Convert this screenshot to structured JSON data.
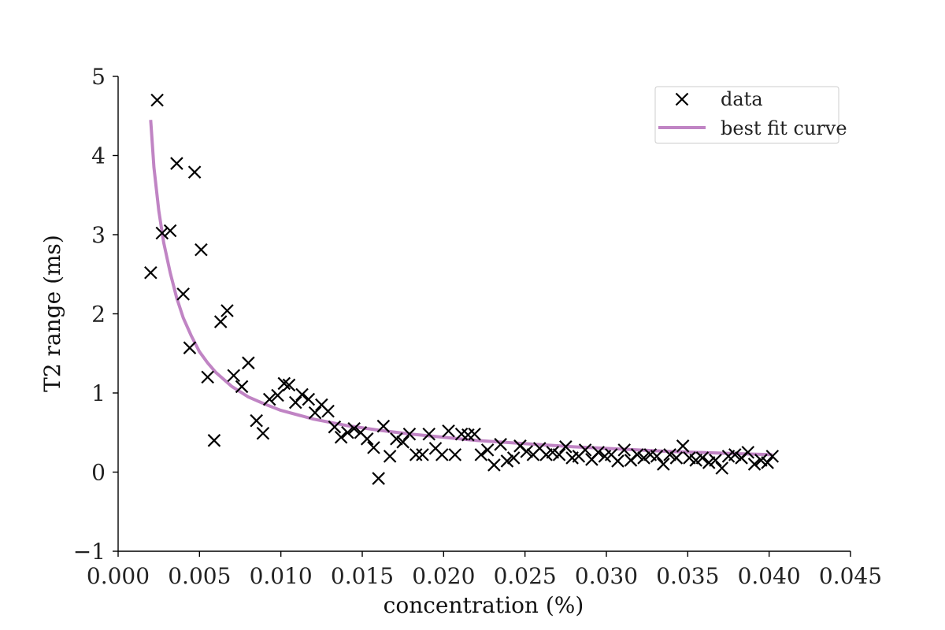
{
  "chart_data": {
    "type": "scatter",
    "title": "",
    "xlabel": "concentration (%)",
    "ylabel": "T2 range (ms)",
    "xlim": [
      0.0,
      0.045
    ],
    "ylim": [
      -1,
      5
    ],
    "xticks": [
      0.0,
      0.005,
      0.01,
      0.015,
      0.02,
      0.025,
      0.03,
      0.035,
      0.04,
      0.045
    ],
    "xtick_labels": [
      "0.000",
      "0.005",
      "0.010",
      "0.015",
      "0.020",
      "0.025",
      "0.030",
      "0.035",
      "0.040",
      "0.045"
    ],
    "yticks": [
      -1,
      0,
      1,
      2,
      3,
      4,
      5
    ],
    "ytick_labels": [
      "−1",
      "0",
      "1",
      "2",
      "3",
      "4",
      "5"
    ],
    "grid": false,
    "legend_position": "top-right",
    "series": [
      {
        "name": "data",
        "kind": "scatter",
        "marker": "x",
        "color": "#000000",
        "points": [
          [
            0.002,
            2.52
          ],
          [
            0.0024,
            4.7
          ],
          [
            0.0027,
            3.02
          ],
          [
            0.0032,
            3.05
          ],
          [
            0.0036,
            3.9
          ],
          [
            0.004,
            2.25
          ],
          [
            0.0044,
            1.57
          ],
          [
            0.0047,
            3.79
          ],
          [
            0.0051,
            2.81
          ],
          [
            0.0055,
            1.2
          ],
          [
            0.0059,
            0.4
          ],
          [
            0.0063,
            1.9
          ],
          [
            0.0067,
            2.04
          ],
          [
            0.0071,
            1.22
          ],
          [
            0.0076,
            1.08
          ],
          [
            0.008,
            1.38
          ],
          [
            0.0085,
            0.65
          ],
          [
            0.0089,
            0.49
          ],
          [
            0.0093,
            0.92
          ],
          [
            0.0098,
            0.97
          ],
          [
            0.0102,
            1.12
          ],
          [
            0.0105,
            1.1
          ],
          [
            0.0109,
            0.88
          ],
          [
            0.0113,
            0.98
          ],
          [
            0.0117,
            0.92
          ],
          [
            0.0121,
            0.75
          ],
          [
            0.0125,
            0.85
          ],
          [
            0.0129,
            0.77
          ],
          [
            0.0133,
            0.57
          ],
          [
            0.0137,
            0.44
          ],
          [
            0.0141,
            0.5
          ],
          [
            0.0145,
            0.55
          ],
          [
            0.0149,
            0.5
          ],
          [
            0.0153,
            0.42
          ],
          [
            0.0157,
            0.31
          ],
          [
            0.016,
            -0.08
          ],
          [
            0.0163,
            0.58
          ],
          [
            0.0167,
            0.2
          ],
          [
            0.0171,
            0.42
          ],
          [
            0.0175,
            0.38
          ],
          [
            0.0179,
            0.48
          ],
          [
            0.0183,
            0.22
          ],
          [
            0.0187,
            0.22
          ],
          [
            0.0191,
            0.48
          ],
          [
            0.0195,
            0.3
          ],
          [
            0.0199,
            0.22
          ],
          [
            0.0203,
            0.52
          ],
          [
            0.0207,
            0.22
          ],
          [
            0.0211,
            0.48
          ],
          [
            0.0215,
            0.47
          ],
          [
            0.0219,
            0.48
          ],
          [
            0.0223,
            0.22
          ],
          [
            0.0227,
            0.28
          ],
          [
            0.0231,
            0.09
          ],
          [
            0.0235,
            0.35
          ],
          [
            0.0239,
            0.14
          ],
          [
            0.0243,
            0.18
          ],
          [
            0.0247,
            0.33
          ],
          [
            0.0251,
            0.26
          ],
          [
            0.0255,
            0.22
          ],
          [
            0.0259,
            0.3
          ],
          [
            0.0263,
            0.22
          ],
          [
            0.0267,
            0.25
          ],
          [
            0.0271,
            0.22
          ],
          [
            0.0275,
            0.32
          ],
          [
            0.0279,
            0.18
          ],
          [
            0.0283,
            0.2
          ],
          [
            0.0287,
            0.28
          ],
          [
            0.0291,
            0.16
          ],
          [
            0.0295,
            0.25
          ],
          [
            0.0299,
            0.2
          ],
          [
            0.0303,
            0.22
          ],
          [
            0.0307,
            0.14
          ],
          [
            0.0311,
            0.28
          ],
          [
            0.0315,
            0.15
          ],
          [
            0.0319,
            0.22
          ],
          [
            0.0323,
            0.18
          ],
          [
            0.0327,
            0.22
          ],
          [
            0.0331,
            0.2
          ],
          [
            0.0335,
            0.1
          ],
          [
            0.0339,
            0.22
          ],
          [
            0.0343,
            0.18
          ],
          [
            0.0347,
            0.33
          ],
          [
            0.0351,
            0.18
          ],
          [
            0.0355,
            0.15
          ],
          [
            0.0359,
            0.18
          ],
          [
            0.0363,
            0.12
          ],
          [
            0.0367,
            0.15
          ],
          [
            0.0371,
            0.05
          ],
          [
            0.0375,
            0.2
          ],
          [
            0.0379,
            0.22
          ],
          [
            0.0383,
            0.18
          ],
          [
            0.0387,
            0.25
          ],
          [
            0.0391,
            0.1
          ],
          [
            0.0395,
            0.15
          ],
          [
            0.0399,
            0.12
          ],
          [
            0.0402,
            0.2
          ]
        ]
      },
      {
        "name": "best fit curve",
        "kind": "line",
        "color": "#c084c4",
        "points": [
          [
            0.002,
            4.45
          ],
          [
            0.0022,
            3.85
          ],
          [
            0.0025,
            3.3
          ],
          [
            0.0028,
            2.9
          ],
          [
            0.0032,
            2.52
          ],
          [
            0.0036,
            2.2
          ],
          [
            0.004,
            1.95
          ],
          [
            0.0045,
            1.72
          ],
          [
            0.005,
            1.52
          ],
          [
            0.0055,
            1.38
          ],
          [
            0.006,
            1.26
          ],
          [
            0.007,
            1.08
          ],
          [
            0.008,
            0.95
          ],
          [
            0.009,
            0.86
          ],
          [
            0.01,
            0.78
          ],
          [
            0.012,
            0.67
          ],
          [
            0.014,
            0.59
          ],
          [
            0.016,
            0.53
          ],
          [
            0.018,
            0.48
          ],
          [
            0.02,
            0.44
          ],
          [
            0.022,
            0.4
          ],
          [
            0.025,
            0.36
          ],
          [
            0.028,
            0.32
          ],
          [
            0.031,
            0.29
          ],
          [
            0.034,
            0.26
          ],
          [
            0.037,
            0.24
          ],
          [
            0.0402,
            0.22
          ]
        ]
      }
    ]
  }
}
